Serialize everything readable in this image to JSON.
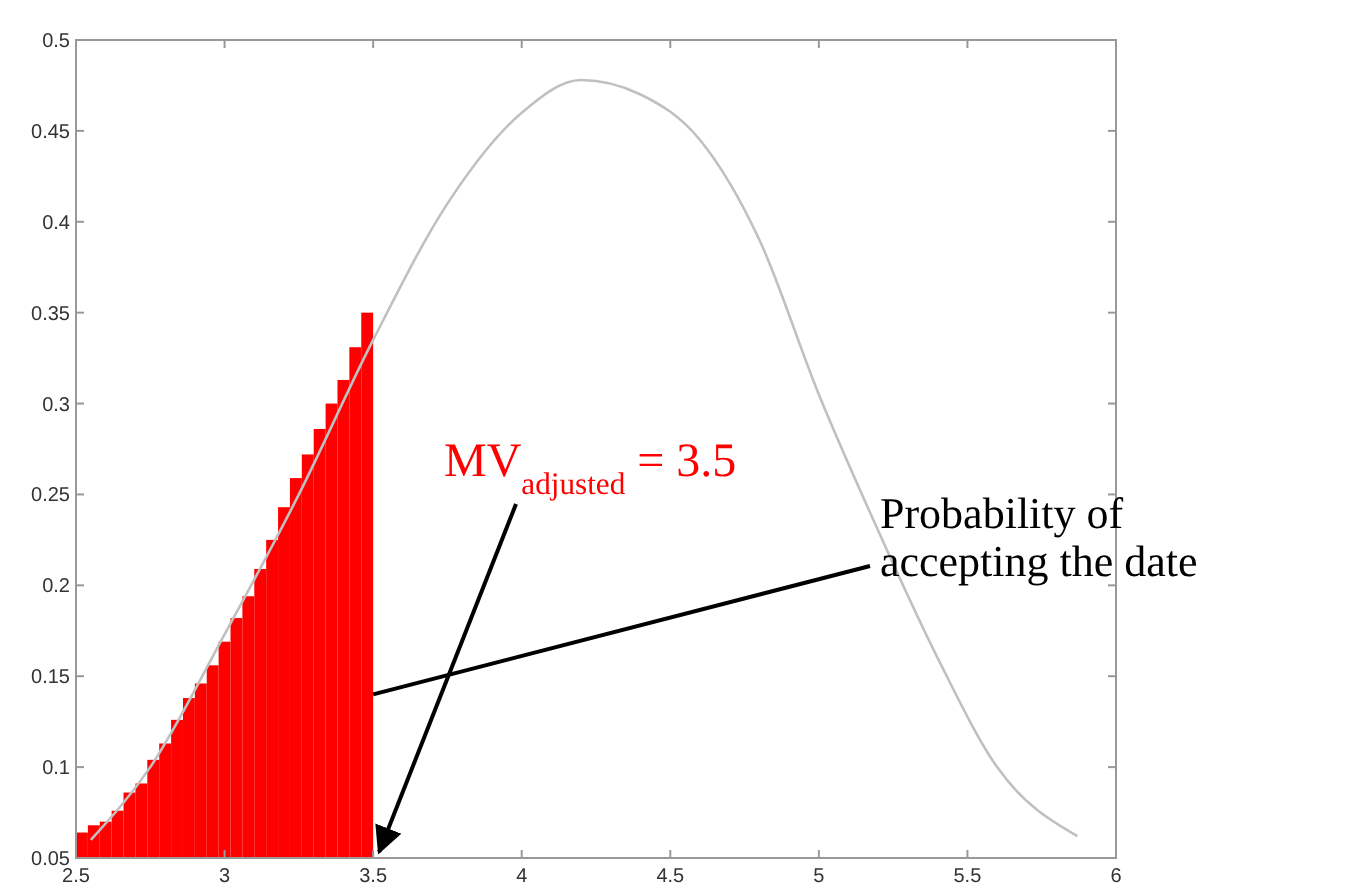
{
  "chart_data": {
    "type": "histogram",
    "xlim": [
      2.5,
      6
    ],
    "ylim": [
      0.05,
      0.5
    ],
    "xticks": [
      2.5,
      3,
      3.5,
      4,
      4.5,
      5,
      5.5,
      6
    ],
    "yticks": [
      0.05,
      0.1,
      0.15,
      0.2,
      0.25,
      0.3,
      0.35,
      0.4,
      0.45,
      0.5
    ],
    "grid": false,
    "color": "#ff0000",
    "bins": [
      2.5,
      2.54,
      2.58,
      2.62,
      2.66,
      2.7,
      2.74,
      2.78,
      2.82,
      2.86,
      2.9,
      2.94,
      2.98,
      3.02,
      3.06,
      3.1,
      3.14,
      3.18,
      3.22,
      3.26,
      3.3,
      3.34,
      3.38,
      3.42,
      3.46,
      3.5
    ],
    "values": [
      0.064,
      0.068,
      0.07,
      0.076,
      0.086,
      0.091,
      0.104,
      0.113,
      0.126,
      0.138,
      0.146,
      0.156,
      0.169,
      0.182,
      0.194,
      0.209,
      0.225,
      0.243,
      0.259,
      0.272,
      0.286,
      0.3,
      0.313,
      0.331,
      0.35
    ],
    "series": [
      {
        "type": "line",
        "color": "#c0c0c0",
        "x": [
          2.55,
          2.75,
          3.0,
          3.25,
          3.5,
          3.75,
          4.0,
          4.2,
          4.4,
          4.6,
          4.8,
          5.0,
          5.2,
          5.4,
          5.6,
          5.87
        ],
        "values": [
          0.06,
          0.1,
          0.173,
          0.25,
          0.335,
          0.41,
          0.46,
          0.478,
          0.47,
          0.445,
          0.39,
          0.305,
          0.23,
          0.16,
          0.1,
          0.062
        ]
      }
    ],
    "annotations": [
      {
        "text": "MV$_{adjusted}$ = 3.5",
        "x": 3.5,
        "y": 0.05
      },
      {
        "text": "Probability of accepting the date",
        "x": 3.5,
        "y": 0.14
      }
    ]
  }
}
